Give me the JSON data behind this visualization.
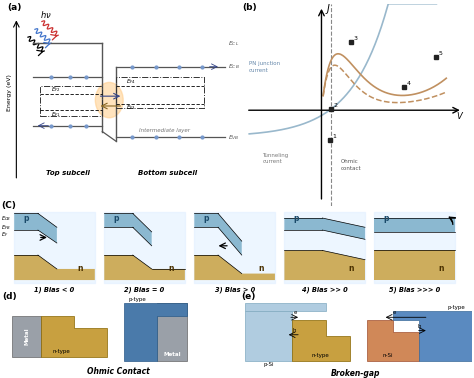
{
  "panel_a_label": "(a)",
  "panel_b_label": "(b)",
  "panel_c_label": "(C)",
  "panel_d_label": "(d)",
  "panel_e_label": "(e)",
  "bg_color": "#ffffff",
  "blue_p": "#7aaec8",
  "blue_p_light": "#b8d4e8",
  "blue_p_dark": "#5a8eaa",
  "gold_n": "#c8a040",
  "gold_n_light": "#d4b060",
  "gray_metal": "#9aA0a8",
  "gray_metal_dark": "#7a8088",
  "orange_nsi": "#d08050",
  "panel_c_biases": [
    "1) Bias < 0",
    "2) Bias = 0",
    "3) Bias > 0",
    "4) Bias >> 0",
    "5) Bias >>> 0"
  ],
  "ohmic_contact_label": "Ohmic Contact",
  "broken_gap_label": "Broken-gap",
  "metal_label": "Metal",
  "ntype_label": "n-type",
  "ptype_label": "p-type",
  "pSi_label": "p-Si",
  "nSi_label": "n-Si",
  "top_subcell": "Top subcell",
  "bottom_subcell": "Bottom subcell",
  "intermediate_layer": "Intermediate layer",
  "pn_junction": "PN junction\ncurrent",
  "tunneling_current": "Tunneling\ncurrent",
  "ohmic_contact_b": "Ohmic\ncontact",
  "hv_label": "$h\\nu$",
  "J_label": "$J$",
  "V_label": "$V$",
  "p_label": "p",
  "n_label": "n"
}
